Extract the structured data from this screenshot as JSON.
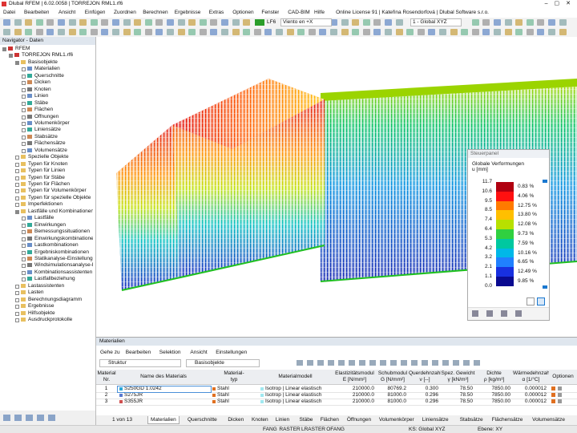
{
  "title_bar": "Dlubal RFEM | 6.02.0058 | TORREJON RML1.rf6",
  "menu": [
    "Datei",
    "Bearbeiten",
    "Ansicht",
    "Einfügen",
    "Zuordnen",
    "Berechnen",
    "Ergebnisse",
    "Extras",
    "Optionen",
    "Fenster",
    "CAD-BIM",
    "Hilfe"
  ],
  "license": "Online License 91 | Kateřina Rosendorfová | Dlubal Software s.r.o.",
  "toolbar": {
    "load_case": "LF6",
    "load_case_name": "Viento en +X",
    "coordinate_system": "1 - Global XYZ"
  },
  "navigator": {
    "title": "Navigator - Daten",
    "root": "RFEM",
    "model": "TORREJON RML1.rf6",
    "items": [
      {
        "label": "Basisobjekte",
        "children": [
          "Materialien",
          "Querschnitte",
          "Dicken",
          "Knoten",
          "Linien",
          "Stäbe",
          "Flächen",
          "Öffnungen",
          "Volumenkörper",
          "Liniensätze",
          "Stabsätze",
          "Flächensätze",
          "Volumensätze"
        ]
      },
      {
        "label": "Spezielle Objekte"
      },
      {
        "label": "Typen für Knoten"
      },
      {
        "label": "Typen für Linien"
      },
      {
        "label": "Typen für Stäbe"
      },
      {
        "label": "Typen für Flächen"
      },
      {
        "label": "Typen für Volumenkörper"
      },
      {
        "label": "Typen für spezielle Objekte"
      },
      {
        "label": "Imperfektionen"
      },
      {
        "label": "Lastfälle und Kombinationen",
        "children": [
          "Lastfälle",
          "Einwirkungen",
          "Bemessungssituationen",
          "Einwirkungskombinationen",
          "Lastkombinationen",
          "Ergebniskombinationen",
          "Statikanalyse-Einstellungen",
          "Windsimulationsanalyse-Einstellun",
          "Kombinationsassistenten",
          "Lastfallbeziehung"
        ]
      },
      {
        "label": "Lastassistenten"
      },
      {
        "label": "Lasten"
      },
      {
        "label": "Berechnungsdiagramm"
      },
      {
        "label": "Ergebnisse"
      },
      {
        "label": "Hilfsobjekte"
      },
      {
        "label": "Ausdruckprotokolle"
      }
    ]
  },
  "control_panel": {
    "title": "Steuerpanel",
    "heading": "Globale Verformungen",
    "unit": "u [mm]",
    "scale": [
      "11.7",
      "10.6",
      "9.5",
      "8.5",
      "7.4",
      "6.4",
      "5.3",
      "4.2",
      "3.2",
      "2.1",
      "1.1",
      "0.0"
    ],
    "percentages": [
      "0.83 %",
      "4.06 %",
      "12.75 %",
      "13.80 %",
      "12.08 %",
      "9.73 %",
      "7.59 %",
      "10.16 %",
      "6.65 %",
      "12.49 %",
      "9.85 %"
    ],
    "colors": [
      "#b00010",
      "#ff1010",
      "#ff7a00",
      "#ffbf00",
      "#b8e000",
      "#30d040",
      "#00c8a0",
      "#00b8e8",
      "#2080ff",
      "#1830e0",
      "#0a0a90"
    ]
  },
  "materials": {
    "title": "Materialien",
    "menu": [
      "Gehe zu",
      "Bearbeiten",
      "Selektion",
      "Ansicht",
      "Einstellungen"
    ],
    "structure": "Struktur",
    "filter": "Basisobjekte",
    "columns": [
      [
        "Material",
        "Nr."
      ],
      [
        "Name des Materials"
      ],
      [
        "Material-",
        "typ"
      ],
      [
        "Materialmodell"
      ],
      [
        "Elastizitätsmodul",
        "E [N/mm²]"
      ],
      [
        "Schubmodul",
        "G [N/mm²]"
      ],
      [
        "Querdehnzahl",
        "ν [--]"
      ],
      [
        "Spez. Gewicht",
        "γ [kN/m³]"
      ],
      [
        "Dichte",
        "ρ [kg/m³]"
      ],
      [
        "Wärmedehnzahl",
        "α [1/°C]"
      ],
      [
        "Optionen"
      ]
    ],
    "rows": [
      [
        "1",
        "S250GD 1.0242",
        "Stahl",
        "Isotrop | Linear elastisch",
        "210000.0",
        "80769.2",
        "0.300",
        "78.50",
        "7850.00",
        "0.000012"
      ],
      [
        "2",
        "S275JR",
        "Stahl",
        "Isotrop | Linear elastisch",
        "210000.0",
        "81000.0",
        "0.296",
        "78.50",
        "7850.00",
        "0.000012"
      ],
      [
        "3",
        "S355JR",
        "Stahl",
        "Isotrop | Linear elastisch",
        "210000.0",
        "81000.0",
        "0.296",
        "78.50",
        "7850.00",
        "0.000012"
      ]
    ]
  },
  "tabs": {
    "pager": "1 von 13",
    "items": [
      "Materialien",
      "Querschnitte",
      "Dicken",
      "Knoten",
      "Linien",
      "Stäbe",
      "Flächen",
      "Öffnungen",
      "Volumenkörper",
      "Liniensätze",
      "Stabsätze",
      "Flächensätze",
      "Volumensätze"
    ]
  },
  "status": {
    "items": [
      "FANG",
      "RASTER",
      "LRASTER",
      "OFANG"
    ],
    "cs": "KS: Global XYZ",
    "plane": "Ebene: XY"
  }
}
